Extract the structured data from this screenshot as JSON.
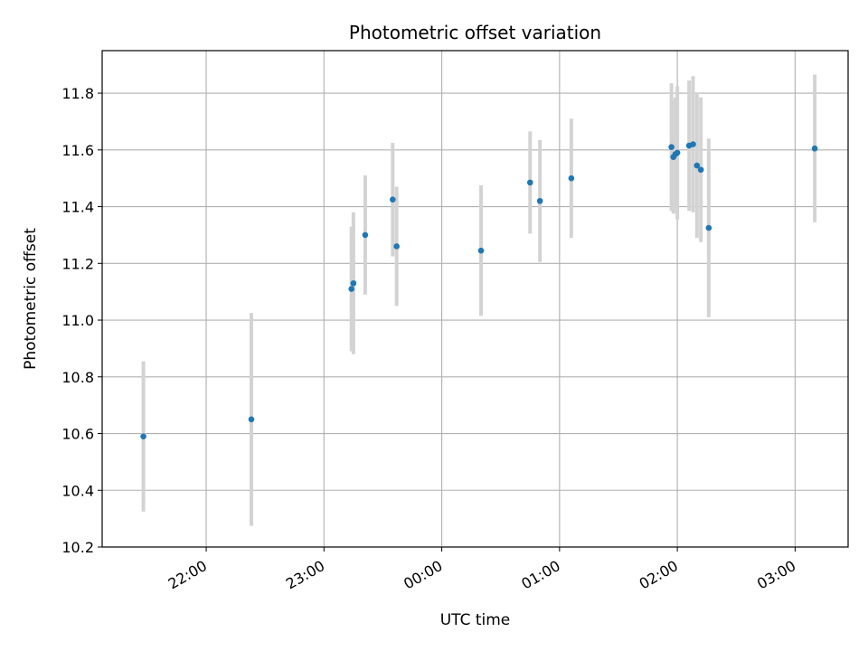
{
  "chart_data": {
    "type": "scatter",
    "title": "Photometric offset variation",
    "xlabel": "UTC time",
    "ylabel": "Photometric offset",
    "xlim": [
      "21:07",
      "03:27"
    ],
    "ylim": [
      10.2,
      11.95
    ],
    "x_ticks": [
      "22:00",
      "23:00",
      "00:00",
      "01:00",
      "02:00",
      "03:00"
    ],
    "y_ticks": [
      "10.2",
      "10.4",
      "10.6",
      "10.8",
      "11.0",
      "11.2",
      "11.4",
      "11.6",
      "11.8"
    ],
    "grid": true,
    "series": [
      {
        "marker_color": "#1f77b4",
        "errorbar_color": "#d3d3d3",
        "points": [
          {
            "t": "21:28",
            "y": 10.59,
            "err": 0.265
          },
          {
            "t": "22:23",
            "y": 10.65,
            "err": 0.375
          },
          {
            "t": "23:14",
            "y": 11.11,
            "err": 0.22
          },
          {
            "t": "23:15",
            "y": 11.13,
            "err": 0.25
          },
          {
            "t": "23:21",
            "y": 11.3,
            "err": 0.21
          },
          {
            "t": "23:35",
            "y": 11.425,
            "err": 0.2
          },
          {
            "t": "23:37",
            "y": 11.26,
            "err": 0.21
          },
          {
            "t": "00:20",
            "y": 11.245,
            "err": 0.23
          },
          {
            "t": "00:45",
            "y": 11.485,
            "err": 0.18
          },
          {
            "t": "00:50",
            "y": 11.42,
            "err": 0.215
          },
          {
            "t": "01:06",
            "y": 11.5,
            "err": 0.21
          },
          {
            "t": "01:57",
            "y": 11.61,
            "err": 0.225
          },
          {
            "t": "01:58",
            "y": 11.575,
            "err": 0.2
          },
          {
            "t": "01:59",
            "y": 11.585,
            "err": 0.2
          },
          {
            "t": "02:00",
            "y": 11.59,
            "err": 0.235
          },
          {
            "t": "02:06",
            "y": 11.615,
            "err": 0.23
          },
          {
            "t": "02:08",
            "y": 11.62,
            "err": 0.24
          },
          {
            "t": "02:10",
            "y": 11.545,
            "err": 0.255
          },
          {
            "t": "02:12",
            "y": 11.53,
            "err": 0.255
          },
          {
            "t": "02:16",
            "y": 11.325,
            "err": 0.315
          },
          {
            "t": "03:10",
            "y": 11.605,
            "err": 0.26
          }
        ]
      }
    ]
  }
}
